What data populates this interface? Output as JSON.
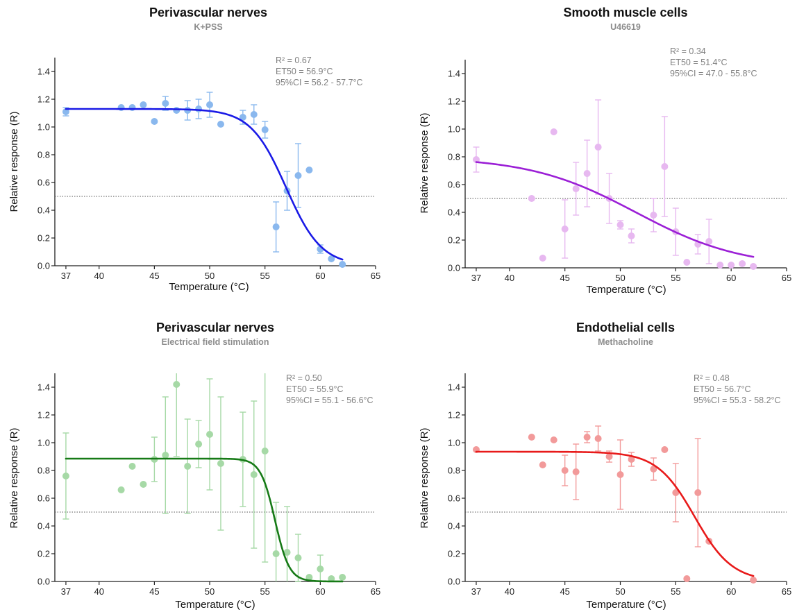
{
  "chart_data": [
    {
      "type": "scatter",
      "title": "Perivascular nerves",
      "subtitle": "K+PSS",
      "stats": [
        "R² = 0.67",
        "ET50 = 56.9°C",
        "95%CI = 56.2 - 57.7°C"
      ],
      "xlabel": "Temperature (°C)",
      "ylabel": "Relative response (R)",
      "xlim": [
        36,
        65
      ],
      "ylim": [
        0,
        1.5
      ],
      "xticks": [
        "37",
        "40",
        "45",
        "50",
        "55",
        "60",
        "65"
      ],
      "yticks": [
        "0.0",
        "0.2",
        "0.4",
        "0.6",
        "0.8",
        "1.0",
        "1.2",
        "1.4"
      ],
      "reference_line": 0.5,
      "colors": {
        "line": "#1a1ae6",
        "points": "#8ab8ee"
      },
      "points": [
        {
          "x": 37,
          "y": 1.11,
          "err": 0.03
        },
        {
          "x": 42,
          "y": 1.14,
          "err": 0.0
        },
        {
          "x": 43,
          "y": 1.14,
          "err": 0.0
        },
        {
          "x": 44,
          "y": 1.16,
          "err": 0.0
        },
        {
          "x": 45,
          "y": 1.04,
          "err": 0.0
        },
        {
          "x": 46,
          "y": 1.17,
          "err": 0.05
        },
        {
          "x": 47,
          "y": 1.12,
          "err": 0.0
        },
        {
          "x": 48,
          "y": 1.12,
          "err": 0.07
        },
        {
          "x": 49,
          "y": 1.13,
          "err": 0.07
        },
        {
          "x": 50,
          "y": 1.16,
          "err": 0.09
        },
        {
          "x": 51,
          "y": 1.02,
          "err": 0.0
        },
        {
          "x": 53,
          "y": 1.07,
          "err": 0.05
        },
        {
          "x": 54,
          "y": 1.09,
          "err": 0.07
        },
        {
          "x": 55,
          "y": 0.98,
          "err": 0.06
        },
        {
          "x": 56,
          "y": 0.28,
          "err": 0.18
        },
        {
          "x": 57,
          "y": 0.54,
          "err": 0.14
        },
        {
          "x": 58,
          "y": 0.65,
          "err": 0.23
        },
        {
          "x": 59,
          "y": 0.69,
          "err": 0.0
        },
        {
          "x": 60,
          "y": 0.12,
          "err": 0.03
        },
        {
          "x": 61,
          "y": 0.05,
          "err": 0.0
        },
        {
          "x": 62,
          "y": 0.01,
          "err": 0.0
        }
      ],
      "fit": {
        "top": 1.13,
        "bottom": 0.0,
        "et50": 56.9,
        "slope": 1.6,
        "x_from": 37,
        "x_to": 62
      }
    },
    {
      "type": "scatter",
      "title": "Smooth muscle cells",
      "subtitle": "U46619",
      "stats": [
        "R² = 0.34",
        "ET50 = 51.4°C",
        "95%CI = 47.0 - 55.8°C"
      ],
      "xlabel": "Temperature (°C)",
      "ylabel": "Relative response (R)",
      "xlim": [
        36,
        65
      ],
      "ylim": [
        0,
        1.5
      ],
      "xticks": [
        "37",
        "40",
        "45",
        "50",
        "55",
        "60",
        "65"
      ],
      "yticks": [
        "0.0",
        "0.2",
        "0.4",
        "0.6",
        "0.8",
        "1.0",
        "1.2",
        "1.4"
      ],
      "reference_line": 0.5,
      "colors": {
        "line": "#9b1fd6",
        "points": "#e7b8f0"
      },
      "points": [
        {
          "x": 37,
          "y": 0.78,
          "err": 0.09
        },
        {
          "x": 42,
          "y": 0.5,
          "err": 0.0
        },
        {
          "x": 43,
          "y": 0.07,
          "err": 0.0
        },
        {
          "x": 44,
          "y": 0.98,
          "err": 0.0
        },
        {
          "x": 45,
          "y": 0.28,
          "err": 0.21
        },
        {
          "x": 46,
          "y": 0.57,
          "err": 0.19
        },
        {
          "x": 47,
          "y": 0.68,
          "err": 0.24
        },
        {
          "x": 48,
          "y": 0.87,
          "err": 0.34
        },
        {
          "x": 49,
          "y": 0.5,
          "err": 0.18
        },
        {
          "x": 50,
          "y": 0.31,
          "err": 0.03
        },
        {
          "x": 51,
          "y": 0.23,
          "err": 0.05
        },
        {
          "x": 53,
          "y": 0.38,
          "err": 0.12
        },
        {
          "x": 54,
          "y": 0.73,
          "err": 0.36
        },
        {
          "x": 55,
          "y": 0.26,
          "err": 0.17
        },
        {
          "x": 56,
          "y": 0.04,
          "err": 0.0
        },
        {
          "x": 57,
          "y": 0.17,
          "err": 0.07
        },
        {
          "x": 58,
          "y": 0.19,
          "err": 0.16
        },
        {
          "x": 59,
          "y": 0.02,
          "err": 0.0
        },
        {
          "x": 60,
          "y": 0.02,
          "err": 0.0
        },
        {
          "x": 61,
          "y": 0.03,
          "err": 0.0
        },
        {
          "x": 62,
          "y": 0.01,
          "err": 0.0
        }
      ],
      "fit": {
        "top": 0.8,
        "bottom": 0.0,
        "et50": 51.4,
        "slope": 4.8,
        "x_from": 37,
        "x_to": 62
      }
    },
    {
      "type": "scatter",
      "title": "Perivascular nerves",
      "subtitle": "Electrical field stimulation",
      "stats": [
        "R² = 0.50",
        "ET50 = 55.9°C",
        "95%CI = 55.1 - 56.6°C"
      ],
      "xlabel": "Temperature (°C)",
      "ylabel": "Relative response (R)",
      "xlim": [
        36,
        65
      ],
      "ylim": [
        0,
        1.5
      ],
      "xticks": [
        "37",
        "40",
        "45",
        "50",
        "55",
        "60",
        "65"
      ],
      "yticks": [
        "0.0",
        "0.2",
        "0.4",
        "0.6",
        "0.8",
        "1.0",
        "1.2",
        "1.4"
      ],
      "reference_line": 0.5,
      "colors": {
        "line": "#167a16",
        "points": "#a6d9a6"
      },
      "points": [
        {
          "x": 37,
          "y": 0.76,
          "err": 0.31
        },
        {
          "x": 42,
          "y": 0.66,
          "err": 0.0
        },
        {
          "x": 43,
          "y": 0.83,
          "err": 0.0
        },
        {
          "x": 44,
          "y": 0.7,
          "err": 0.0
        },
        {
          "x": 45,
          "y": 0.88,
          "err": 0.16
        },
        {
          "x": 46,
          "y": 0.91,
          "err": 0.42
        },
        {
          "x": 47,
          "y": 1.42,
          "err": 0.52
        },
        {
          "x": 48,
          "y": 0.83,
          "err": 0.34
        },
        {
          "x": 49,
          "y": 0.99,
          "err": 0.17
        },
        {
          "x": 50,
          "y": 1.06,
          "err": 0.4
        },
        {
          "x": 51,
          "y": 0.85,
          "err": 0.48
        },
        {
          "x": 53,
          "y": 0.88,
          "err": 0.34
        },
        {
          "x": 54,
          "y": 0.77,
          "err": 0.53
        },
        {
          "x": 55,
          "y": 0.94,
          "err": 0.8
        },
        {
          "x": 56,
          "y": 0.2,
          "err": 0.37
        },
        {
          "x": 57,
          "y": 0.21,
          "err": 0.33
        },
        {
          "x": 58,
          "y": 0.17,
          "err": 0.17
        },
        {
          "x": 59,
          "y": 0.03,
          "err": 0.0
        },
        {
          "x": 60,
          "y": 0.09,
          "err": 0.1
        },
        {
          "x": 61,
          "y": 0.02,
          "err": 0.0
        },
        {
          "x": 62,
          "y": 0.03,
          "err": 0.0
        }
      ],
      "fit": {
        "top": 0.885,
        "bottom": 0.0,
        "et50": 55.9,
        "slope": 0.65,
        "x_from": 37,
        "x_to": 62
      }
    },
    {
      "type": "scatter",
      "title": "Endothelial cells",
      "subtitle": "Methacholine",
      "stats": [
        "R² = 0.48",
        "ET50 = 56.7°C",
        "95%CI = 55.3 - 58.2°C"
      ],
      "xlabel": "Temperature (°C)",
      "ylabel": "Relative response (R)",
      "xlim": [
        36,
        65
      ],
      "ylim": [
        0,
        1.5
      ],
      "xticks": [
        "37",
        "40",
        "45",
        "50",
        "55",
        "60",
        "65"
      ],
      "yticks": [
        "0.0",
        "0.2",
        "0.4",
        "0.6",
        "0.8",
        "1.0",
        "1.2",
        "1.4"
      ],
      "reference_line": 0.5,
      "colors": {
        "line": "#e81a1a",
        "points": "#f29a9a"
      },
      "points": [
        {
          "x": 37,
          "y": 0.95,
          "err": 0.0
        },
        {
          "x": 42,
          "y": 1.04,
          "err": 0.0
        },
        {
          "x": 43,
          "y": 0.84,
          "err": 0.0
        },
        {
          "x": 44,
          "y": 1.02,
          "err": 0.0
        },
        {
          "x": 45,
          "y": 0.8,
          "err": 0.11
        },
        {
          "x": 46,
          "y": 0.79,
          "err": 0.2
        },
        {
          "x": 47,
          "y": 1.04,
          "err": 0.04
        },
        {
          "x": 48,
          "y": 1.03,
          "err": 0.09
        },
        {
          "x": 49,
          "y": 0.9,
          "err": 0.04
        },
        {
          "x": 50,
          "y": 0.77,
          "err": 0.25
        },
        {
          "x": 51,
          "y": 0.88,
          "err": 0.05
        },
        {
          "x": 53,
          "y": 0.81,
          "err": 0.08
        },
        {
          "x": 54,
          "y": 0.95,
          "err": 0.0
        },
        {
          "x": 55,
          "y": 0.64,
          "err": 0.21
        },
        {
          "x": 56,
          "y": 0.02,
          "err": 0.0
        },
        {
          "x": 57,
          "y": 0.64,
          "err": 0.39
        },
        {
          "x": 58,
          "y": 0.29,
          "err": 0.0
        },
        {
          "x": 62,
          "y": 0.01,
          "err": 0.0
        }
      ],
      "fit": {
        "top": 0.935,
        "bottom": 0.0,
        "et50": 56.7,
        "slope": 1.7,
        "x_from": 37,
        "x_to": 62
      }
    }
  ]
}
